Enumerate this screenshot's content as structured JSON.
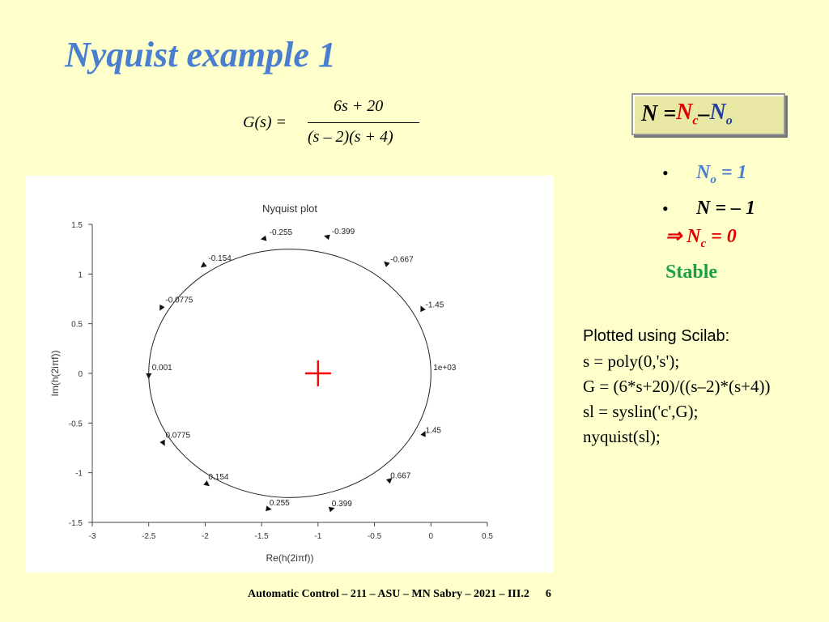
{
  "slide": {
    "title": "Nyquist example 1",
    "footer": "Automatic Control – 211 – ASU – MN Sabry – 2021 – III.2",
    "page": "6"
  },
  "formula": {
    "lhs": "G(s) =",
    "numerator": "6s + 20",
    "denominator": "(s – 2)(s + 4)"
  },
  "nbox": {
    "n": "N = ",
    "nc": "N",
    "nc_sub": "c",
    "minus": " – ",
    "no": "N",
    "no_sub": "o"
  },
  "bullets": {
    "b1_var": "N",
    "b1_sub": "o",
    "b1_val": " = 1",
    "b2": "N = – 1",
    "b3_arrow": "⇒ ",
    "b3_var": "N",
    "b3_sub": "c",
    "b3_val": " = 0",
    "stable": "Stable"
  },
  "code": {
    "header": "Plotted using Scilab:",
    "lines": [
      "s = poly(0,'s');",
      "G = (6*s+20)/((s–2)*(s+4))",
      "sl = syslin('c',G);",
      "nyquist(sl);"
    ]
  },
  "colors": {
    "background": "#ffffcc",
    "title": "#4a7fd0",
    "red": "#e00000",
    "green": "#1aa04a",
    "critical_point": "#ff0000"
  },
  "chart_data": {
    "type": "line",
    "title": "Nyquist plot",
    "xlabel": "Re(h(2iπf))",
    "ylabel": "Im(h(2iπf))",
    "xlim": [
      -3,
      0.5
    ],
    "ylim": [
      -1.5,
      1.5
    ],
    "xticks": [
      -3,
      -2.5,
      -2,
      -1.5,
      -1,
      -0.5,
      0,
      0.5
    ],
    "yticks": [
      -1.5,
      -1,
      -0.5,
      0,
      0.5,
      1,
      1.5
    ],
    "xtick_labels": [
      "-3",
      "-2.5",
      "-2",
      "-1.5",
      "-1",
      "-0.5",
      "0",
      "0.5"
    ],
    "ytick_labels": [
      "-1.5",
      "-1",
      "-0.5",
      "0",
      "0.5",
      "1",
      "1.5"
    ],
    "critical_point": [
      -1,
      0
    ],
    "curve": {
      "type": "circle",
      "center": [
        -1.25,
        0
      ],
      "radius": 1.25
    },
    "annotations": [
      {
        "label": "-0.399",
        "x": -0.9,
        "y": 1.37
      },
      {
        "label": "-0.255",
        "x": -1.46,
        "y": 1.36
      },
      {
        "label": "-0.667",
        "x": -0.38,
        "y": 1.09
      },
      {
        "label": "-0.154",
        "x": -2.0,
        "y": 1.1
      },
      {
        "label": "-1.45",
        "x": -0.07,
        "y": 0.63
      },
      {
        "label": "-0.0775",
        "x": -2.38,
        "y": 0.68
      },
      {
        "label": "1e+03",
        "x": 0.0,
        "y": 0.0
      },
      {
        "label": "0.001",
        "x": -2.5,
        "y": 0.0
      },
      {
        "label": "1.45",
        "x": -0.07,
        "y": -0.63
      },
      {
        "label": "0.0775",
        "x": -2.38,
        "y": -0.68
      },
      {
        "label": "0.154",
        "x": -2.0,
        "y": -1.1
      },
      {
        "label": "0.667",
        "x": -0.38,
        "y": -1.09
      },
      {
        "label": "0.255",
        "x": -1.46,
        "y": -1.36
      },
      {
        "label": "0.399",
        "x": -0.9,
        "y": -1.37
      }
    ],
    "arrows": [
      {
        "x": -1.46,
        "y": 1.36,
        "dir": "ccw"
      },
      {
        "x": -0.9,
        "y": 1.37,
        "dir": "ccw"
      },
      {
        "x": -2.0,
        "y": 1.1,
        "dir": "ccw"
      },
      {
        "x": -0.38,
        "y": 1.09,
        "dir": "ccw"
      },
      {
        "x": -2.38,
        "y": 0.68,
        "dir": "ccw"
      },
      {
        "x": -0.07,
        "y": 0.63,
        "dir": "ccw"
      },
      {
        "x": -2.5,
        "y": 0.0,
        "dir": "ccw"
      },
      {
        "x": -0.07,
        "y": -0.63,
        "dir": "ccw"
      },
      {
        "x": -2.38,
        "y": -0.68,
        "dir": "ccw"
      },
      {
        "x": -2.0,
        "y": -1.1,
        "dir": "ccw"
      },
      {
        "x": -1.46,
        "y": -1.36,
        "dir": "ccw"
      },
      {
        "x": -0.9,
        "y": -1.37,
        "dir": "ccw"
      },
      {
        "x": -0.38,
        "y": -1.09,
        "dir": "ccw"
      }
    ]
  }
}
